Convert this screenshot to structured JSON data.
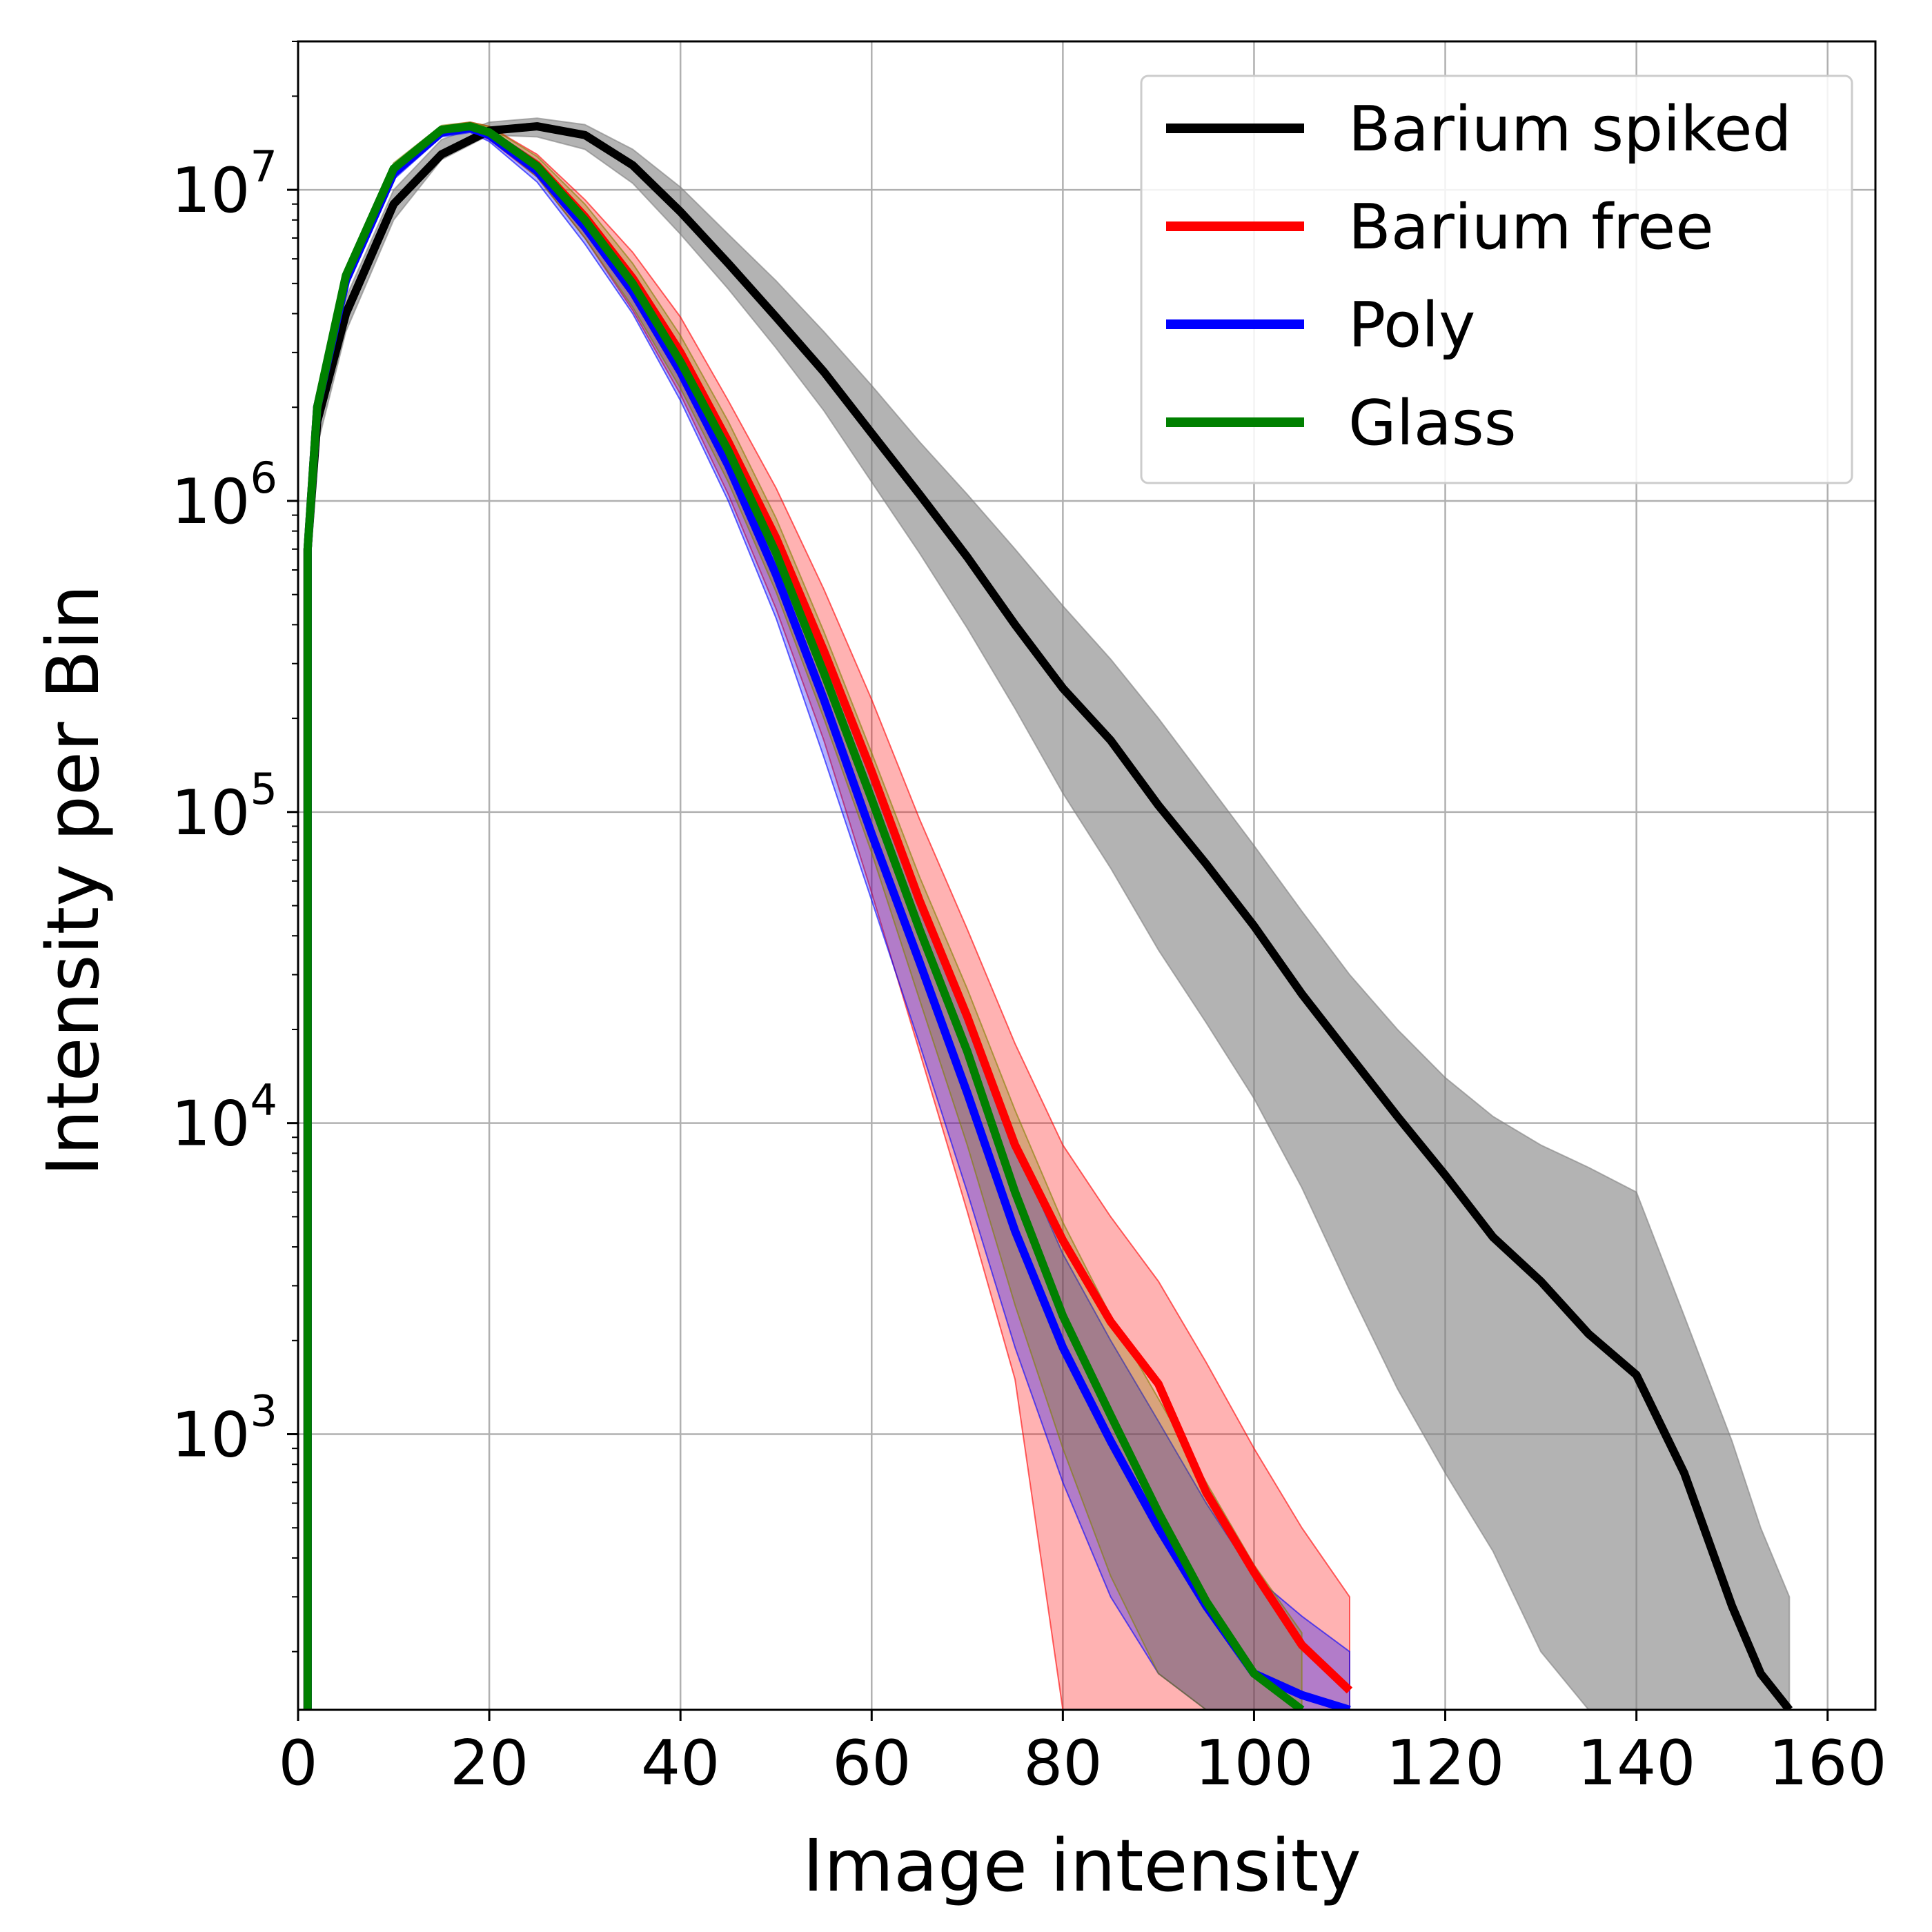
{
  "chart_data": {
    "type": "line",
    "title": "",
    "xlabel": "Image intensity",
    "ylabel": "Intensity per Bin",
    "xlim": [
      0,
      165
    ],
    "ylim": [
      130,
      30000000
    ],
    "yscale": "log",
    "grid": true,
    "legend_position": "top-right",
    "x_ticks": [
      "0",
      "20",
      "40",
      "60",
      "80",
      "100",
      "120",
      "140",
      "160"
    ],
    "y_ticks": [
      {
        "base": "10",
        "exp": "3",
        "value": 1000
      },
      {
        "base": "10",
        "exp": "4",
        "value": 10000
      },
      {
        "base": "10",
        "exp": "5",
        "value": 100000
      },
      {
        "base": "10",
        "exp": "6",
        "value": 1000000
      },
      {
        "base": "10",
        "exp": "7",
        "value": 10000000
      }
    ],
    "series": [
      {
        "name": "Barium spiked",
        "color": "#000000",
        "band_color": "#808080",
        "x": [
          1,
          2,
          5,
          10,
          15,
          20,
          25,
          30,
          35,
          40,
          45,
          50,
          55,
          60,
          65,
          70,
          75,
          80,
          85,
          90,
          95,
          100,
          105,
          110,
          115,
          120,
          125,
          130,
          135,
          140,
          145,
          150,
          153,
          156
        ],
        "y": [
          700000,
          1800000,
          4000000,
          9000000,
          13000000,
          15500000,
          16000000,
          15000000,
          12000000,
          8500000,
          5800000,
          3900000,
          2600000,
          1650000,
          1050000,
          660000,
          400000,
          250000,
          170000,
          105000,
          68000,
          43000,
          26000,
          16500,
          10500,
          6800,
          4300,
          3100,
          2100,
          1550,
          750,
          280,
          170,
          130
        ],
        "band_lower": [
          550000,
          1500000,
          3500000,
          8000000,
          12500000,
          15000000,
          14800000,
          13500000,
          10500000,
          7200000,
          4800000,
          3100000,
          1950000,
          1150000,
          680000,
          390000,
          215000,
          115000,
          66000,
          36000,
          21000,
          12000,
          6200,
          2900,
          1400,
          750,
          420,
          200,
          130,
          130,
          130,
          130,
          130,
          130
        ],
        "band_upper": [
          850000,
          2100000,
          4500000,
          10000000,
          14500000,
          16500000,
          17000000,
          16200000,
          13500000,
          10200000,
          7200000,
          5100000,
          3500000,
          2350000,
          1550000,
          1050000,
          700000,
          460000,
          310000,
          200000,
          125000,
          78000,
          48000,
          30000,
          20000,
          14000,
          10500,
          8500,
          7200,
          6000,
          2400,
          950,
          500,
          300
        ]
      },
      {
        "name": "Barium free",
        "color": "#ff0000",
        "band_color": "#ff0000",
        "x": [
          1,
          2,
          5,
          10,
          15,
          18,
          20,
          25,
          30,
          35,
          40,
          45,
          50,
          55,
          60,
          65,
          70,
          75,
          80,
          85,
          90,
          95,
          100,
          105,
          110
        ],
        "y": [
          700000,
          2000000,
          5200000,
          11500000,
          15500000,
          16000000,
          15200000,
          12000000,
          8200000,
          5200000,
          3000000,
          1550000,
          760000,
          330000,
          135000,
          52000,
          22000,
          8500,
          4200,
          2300,
          1450,
          650,
          360,
          210,
          150
        ],
        "band_lower": [
          650000,
          1900000,
          5000000,
          11000000,
          15000000,
          15500000,
          14500000,
          11000000,
          7000000,
          4100000,
          2200000,
          1050000,
          450000,
          170000,
          55000,
          17000,
          5200,
          1500,
          130,
          130,
          130,
          130,
          130,
          130,
          130
        ],
        "band_upper": [
          750000,
          2100000,
          5400000,
          12000000,
          16000000,
          16500000,
          16000000,
          13000000,
          9300000,
          6300000,
          3900000,
          2100000,
          1100000,
          520000,
          230000,
          95000,
          42000,
          18000,
          8500,
          5000,
          3100,
          1700,
          900,
          500,
          300
        ]
      },
      {
        "name": "Poly",
        "color": "#0000ff",
        "band_color": "#0000ff",
        "x": [
          1,
          2,
          5,
          10,
          15,
          18,
          20,
          25,
          30,
          35,
          40,
          45,
          50,
          55,
          60,
          65,
          70,
          75,
          80,
          85,
          90,
          95,
          100,
          105,
          110
        ],
        "y": [
          700000,
          2000000,
          5100000,
          11300000,
          15300000,
          15800000,
          15000000,
          11500000,
          7600000,
          4700000,
          2600000,
          1300000,
          580000,
          230000,
          85000,
          33000,
          12500,
          4500,
          1900,
          950,
          500,
          280,
          170,
          145,
          130
        ],
        "band_lower": [
          650000,
          1900000,
          4900000,
          10800000,
          14800000,
          15300000,
          14300000,
          10600000,
          6700000,
          4000000,
          2100000,
          1000000,
          420000,
          150000,
          52000,
          18000,
          6000,
          1900,
          700,
          300,
          170,
          130,
          130,
          130,
          130
        ],
        "band_upper": [
          750000,
          2100000,
          5300000,
          11800000,
          15800000,
          16300000,
          15700000,
          12400000,
          8500000,
          5400000,
          3100000,
          1600000,
          760000,
          320000,
          130000,
          55000,
          22000,
          8500,
          3800,
          2000,
          1100,
          600,
          350,
          260,
          200
        ]
      },
      {
        "name": "Glass",
        "color": "#008000",
        "band_color": "#808000",
        "x": [
          1,
          2,
          5,
          10,
          15,
          18,
          20,
          25,
          30,
          35,
          40,
          45,
          50,
          55,
          60,
          65,
          70,
          75,
          80,
          85,
          90,
          95,
          100,
          105
        ],
        "y": [
          700000,
          2000000,
          5300000,
          11700000,
          15600000,
          16000000,
          15300000,
          11900000,
          8000000,
          5000000,
          2800000,
          1450000,
          680000,
          280000,
          110000,
          42000,
          17000,
          6000,
          2400,
          1150,
          560,
          290,
          170,
          130
        ],
        "band_lower": [
          650000,
          1900000,
          5100000,
          11200000,
          15100000,
          15500000,
          14700000,
          11000000,
          7000000,
          4200000,
          2300000,
          1150000,
          510000,
          200000,
          74000,
          25000,
          8500,
          2600,
          900,
          350,
          170,
          130,
          130,
          130
        ],
        "band_upper": [
          750000,
          2100000,
          5500000,
          12200000,
          16100000,
          16500000,
          16000000,
          12800000,
          9000000,
          5800000,
          3400000,
          1800000,
          880000,
          380000,
          155000,
          62000,
          27000,
          11000,
          4800,
          2400,
          1300,
          700,
          380,
          230
        ]
      }
    ]
  }
}
